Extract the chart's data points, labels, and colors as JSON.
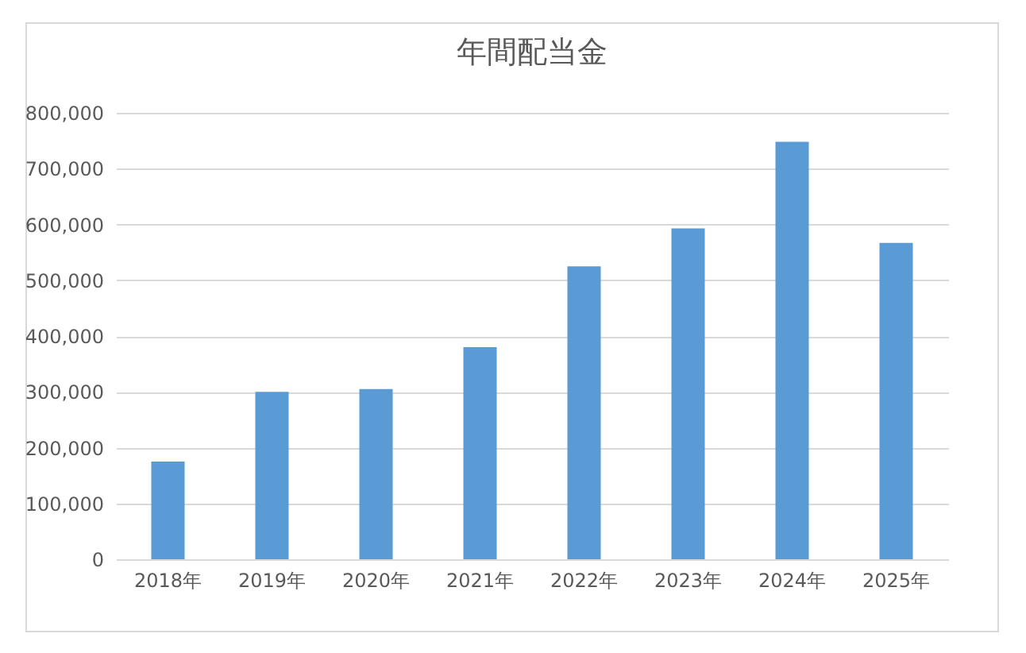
{
  "chart_data": {
    "type": "bar",
    "title": "年間配当金",
    "categories": [
      "2018年",
      "2019年",
      "2020年",
      "2021年",
      "2022年",
      "2023年",
      "2024年",
      "2025年"
    ],
    "values": [
      175000,
      300000,
      305000,
      380000,
      525000,
      593000,
      748000,
      567000
    ],
    "color": "#5b9bd5",
    "ylim": [
      0,
      800000
    ],
    "yticks": [
      {
        "value": 0,
        "label": "0"
      },
      {
        "value": 100000,
        "label": "100,000"
      },
      {
        "value": 200000,
        "label": "200,000"
      },
      {
        "value": 300000,
        "label": "300,000"
      },
      {
        "value": 400000,
        "label": "400,000"
      },
      {
        "value": 500000,
        "label": "500,000"
      },
      {
        "value": 600000,
        "label": "600,000"
      },
      {
        "value": 700000,
        "label": "700,000"
      },
      {
        "value": 800000,
        "label": "800,000"
      }
    ],
    "grid": "y"
  }
}
